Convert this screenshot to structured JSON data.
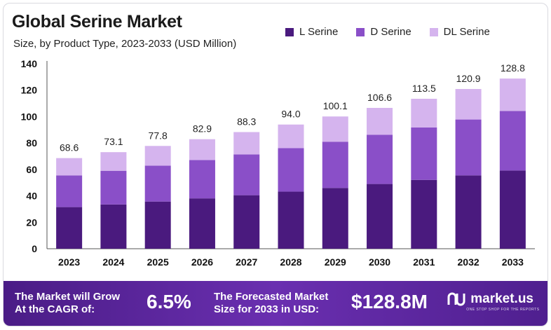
{
  "header": {
    "title": "Global Serine Market",
    "subtitle": "Size, by Product Type, 2023-2033 (USD Million)"
  },
  "legend": [
    {
      "label": "L Serine",
      "color": "#4a1a7e"
    },
    {
      "label": "D Serine",
      "color": "#8a4fc8"
    },
    {
      "label": "DL Serine",
      "color": "#d5b4ee"
    }
  ],
  "chart_data": {
    "type": "bar",
    "stacked": true,
    "title": "Global Serine Market",
    "subtitle": "Size, by Product Type, 2023-2033 (USD Million)",
    "categories": [
      "2023",
      "2024",
      "2025",
      "2026",
      "2027",
      "2028",
      "2029",
      "2030",
      "2031",
      "2032",
      "2033"
    ],
    "series": [
      {
        "name": "L Serine",
        "color": "#4a1a7e",
        "values": [
          31.5,
          33.5,
          35.7,
          38.1,
          40.5,
          43.2,
          46.0,
          49.0,
          52.1,
          55.5,
          59.2
        ]
      },
      {
        "name": "D Serine",
        "color": "#8a4fc8",
        "values": [
          24.0,
          25.5,
          27.2,
          29.0,
          30.9,
          32.9,
          35.0,
          37.3,
          39.7,
          42.3,
          45.1
        ]
      },
      {
        "name": "DL Serine",
        "color": "#d5b4ee",
        "values": [
          13.1,
          14.1,
          14.9,
          15.8,
          16.9,
          17.9,
          19.1,
          20.3,
          21.7,
          23.1,
          24.5
        ]
      }
    ],
    "totals": [
      "68.6",
      "73.1",
      "77.8",
      "82.9",
      "88.3",
      "94.0",
      "100.1",
      "106.6",
      "113.5",
      "120.9",
      "128.8"
    ],
    "yticks": [
      "0",
      "20",
      "40",
      "60",
      "80",
      "100",
      "120",
      "140"
    ],
    "ylim": [
      0,
      140
    ],
    "grid": false,
    "legend_position": "top-right"
  },
  "footer": {
    "cagr_text_1": "The Market will Grow",
    "cagr_text_2": "At the CAGR of:",
    "cagr_value": "6.5%",
    "forecast_text_1": "The Forecasted Market",
    "forecast_text_2": "Size for 2033 in USD:",
    "forecast_value": "$128.8M",
    "brand_name": "market.us",
    "brand_tagline": "ONE STOP SHOP FOR THE REPORTS"
  }
}
